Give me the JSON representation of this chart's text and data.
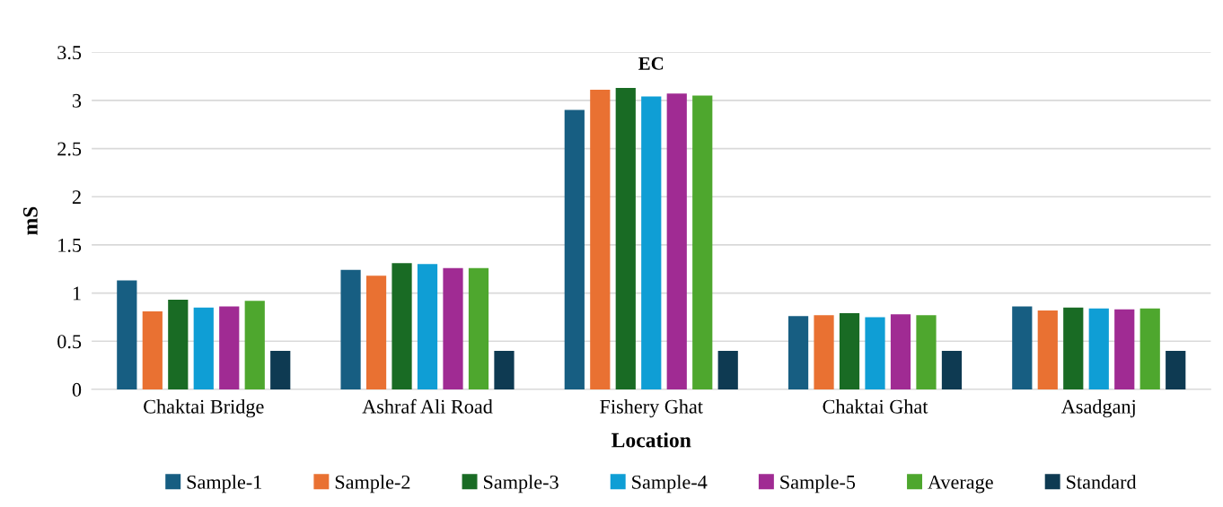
{
  "chart_data": {
    "type": "bar",
    "title": "EC",
    "xlabel": "Location",
    "ylabel": "mS",
    "categories": [
      "Chaktai Bridge",
      "Ashraf Ali Road",
      "Fishery Ghat",
      "Chaktai Ghat",
      "Asadganj"
    ],
    "series": [
      {
        "name": "Sample-1",
        "color": "#175e82",
        "values": [
          1.13,
          1.24,
          2.9,
          0.76,
          0.86
        ]
      },
      {
        "name": "Sample-2",
        "color": "#e97132",
        "values": [
          0.81,
          1.18,
          3.11,
          0.77,
          0.82
        ]
      },
      {
        "name": "Sample-3",
        "color": "#196b24",
        "values": [
          0.93,
          1.31,
          3.13,
          0.79,
          0.85
        ]
      },
      {
        "name": "Sample-4",
        "color": "#0f9ed5",
        "values": [
          0.85,
          1.3,
          3.04,
          0.75,
          0.84
        ]
      },
      {
        "name": "Sample-5",
        "color": "#a02b93",
        "values": [
          0.86,
          1.26,
          3.07,
          0.78,
          0.83
        ]
      },
      {
        "name": "Average",
        "color": "#4ea72e",
        "values": [
          0.92,
          1.26,
          3.05,
          0.77,
          0.84
        ]
      },
      {
        "name": "Standard",
        "color": "#0e3a52",
        "values": [
          0.4,
          0.4,
          0.4,
          0.4,
          0.4
        ]
      }
    ],
    "ylim": [
      0,
      3.5
    ],
    "yticks": [
      0,
      0.5,
      1,
      1.5,
      2,
      2.5,
      3,
      3.5
    ],
    "grid": "y",
    "legend": "bottom"
  }
}
